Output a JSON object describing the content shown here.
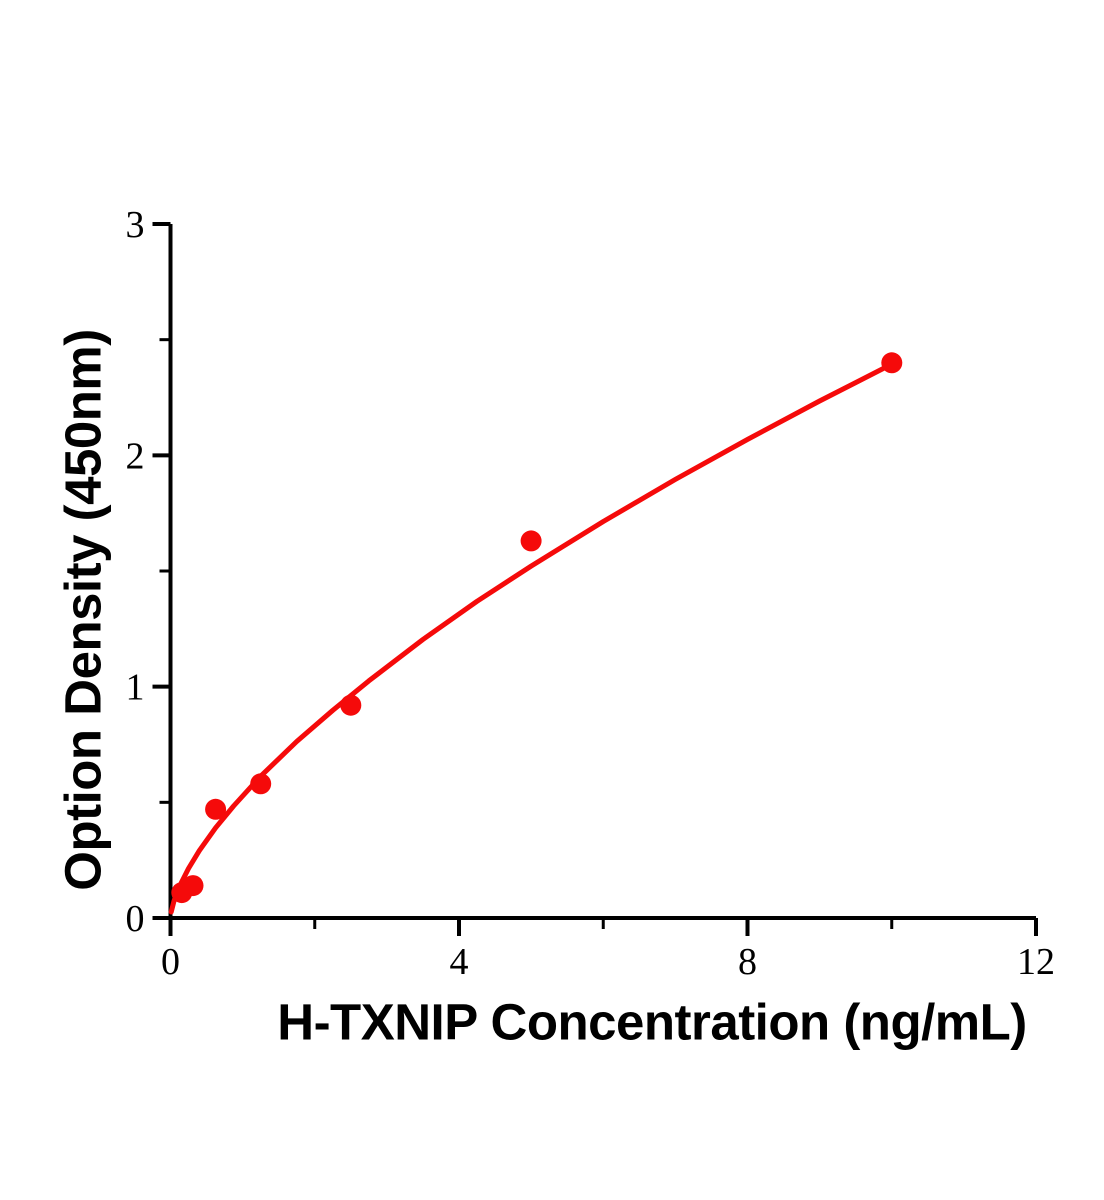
{
  "figure": {
    "description": "ELISA standard curve plot, red dose-response curve with round markers on black axes"
  },
  "chart_data": {
    "type": "scatter",
    "title": "",
    "xlabel": "H-TXNIP Concentration (ng/mL)",
    "ylabel": "Option Density (450nm)",
    "xlim": [
      0,
      12
    ],
    "ylim": [
      0,
      3
    ],
    "x_major_ticks": [
      0,
      4,
      8,
      12
    ],
    "x_minor_ticks": [
      2,
      6,
      10
    ],
    "y_major_ticks": [
      0,
      1,
      2,
      3
    ],
    "y_minor_ticks": [
      0.5,
      1.5,
      2.5
    ],
    "grid": false,
    "legend": false,
    "series": [
      {
        "name": "standard-points",
        "type": "scatter",
        "marker": "circle",
        "color": "#f50a0a",
        "points": [
          [
            0.156,
            0.11
          ],
          [
            0.3125,
            0.14
          ],
          [
            0.625,
            0.47
          ],
          [
            1.25,
            0.58
          ],
          [
            2.5,
            0.92
          ],
          [
            5,
            1.63
          ],
          [
            10,
            2.4
          ]
        ]
      },
      {
        "name": "fit-curve",
        "type": "line",
        "color": "#f50a0a",
        "points": [
          [
            0.01,
            0.026
          ],
          [
            0.05,
            0.075
          ],
          [
            0.1,
            0.117
          ],
          [
            0.156,
            0.157
          ],
          [
            0.25,
            0.214
          ],
          [
            0.4,
            0.291
          ],
          [
            0.625,
            0.39
          ],
          [
            0.875,
            0.484
          ],
          [
            1.25,
            0.613
          ],
          [
            1.75,
            0.763
          ],
          [
            2.25,
            0.898
          ],
          [
            2.75,
            1.025
          ],
          [
            3.5,
            1.204
          ],
          [
            4.25,
            1.369
          ],
          [
            5,
            1.521
          ],
          [
            6,
            1.714
          ],
          [
            7,
            1.896
          ],
          [
            8,
            2.069
          ],
          [
            9,
            2.235
          ],
          [
            10,
            2.394
          ]
        ]
      }
    ]
  },
  "colors": {
    "curve_red": "#f50a0a",
    "axis_black": "#000000",
    "background": "#ffffff"
  }
}
